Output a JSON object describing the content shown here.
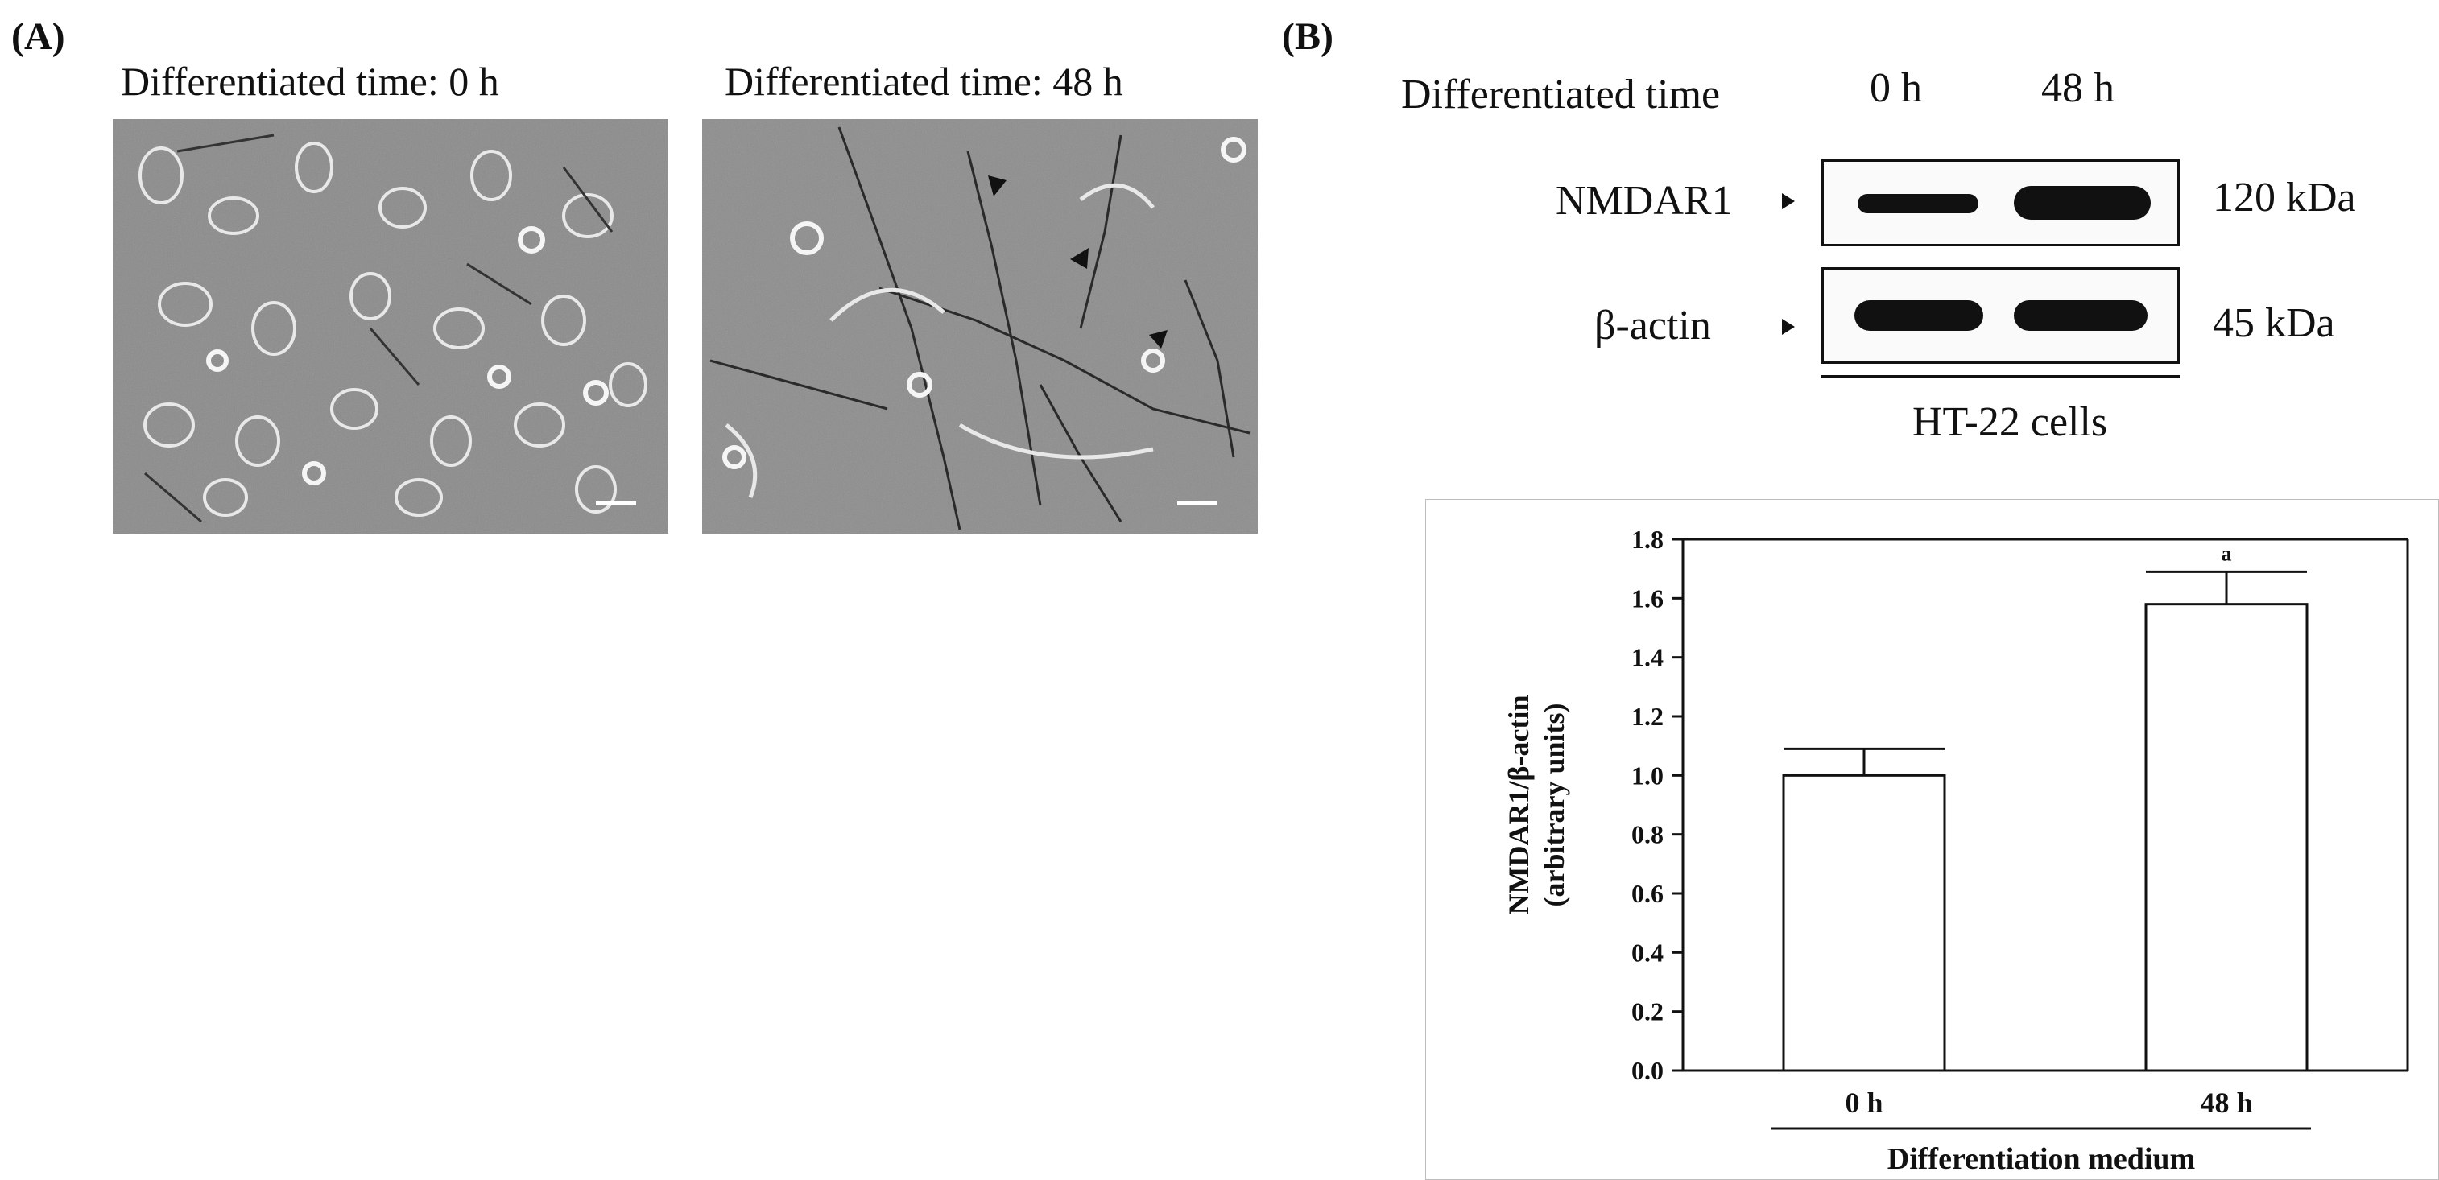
{
  "panel_a": {
    "label": "(A)",
    "images": [
      {
        "title": "Differentiated time: 0 h"
      },
      {
        "title": "Differentiated time: 48 h"
      }
    ]
  },
  "panel_b": {
    "label": "(B)",
    "western_blot": {
      "header_label": "Differentiated time",
      "lanes": [
        "0 h",
        "48 h"
      ],
      "rows": [
        {
          "protein": "NMDAR1",
          "size": "120 kDa"
        },
        {
          "protein": "β-actin",
          "size": "45 kDa"
        }
      ],
      "cell_line": "HT-22 cells"
    }
  },
  "chart_data": {
    "type": "bar",
    "categories": [
      "0 h",
      "48 h"
    ],
    "values": [
      1.0,
      1.58
    ],
    "errors": [
      0.09,
      0.11
    ],
    "annotations": [
      "",
      "a"
    ],
    "ylabel_line1": "NMDAR1/β-actin",
    "ylabel_line2": "(arbitrary units)",
    "xlabel": "Differentiation medium",
    "ylim": [
      0.0,
      1.8
    ],
    "yticks": [
      "0.0",
      "0.2",
      "0.4",
      "0.6",
      "0.8",
      "1.0",
      "1.2",
      "1.4",
      "1.6",
      "1.8"
    ],
    "bar_color": "#ffffff",
    "line_color": "#111111"
  }
}
